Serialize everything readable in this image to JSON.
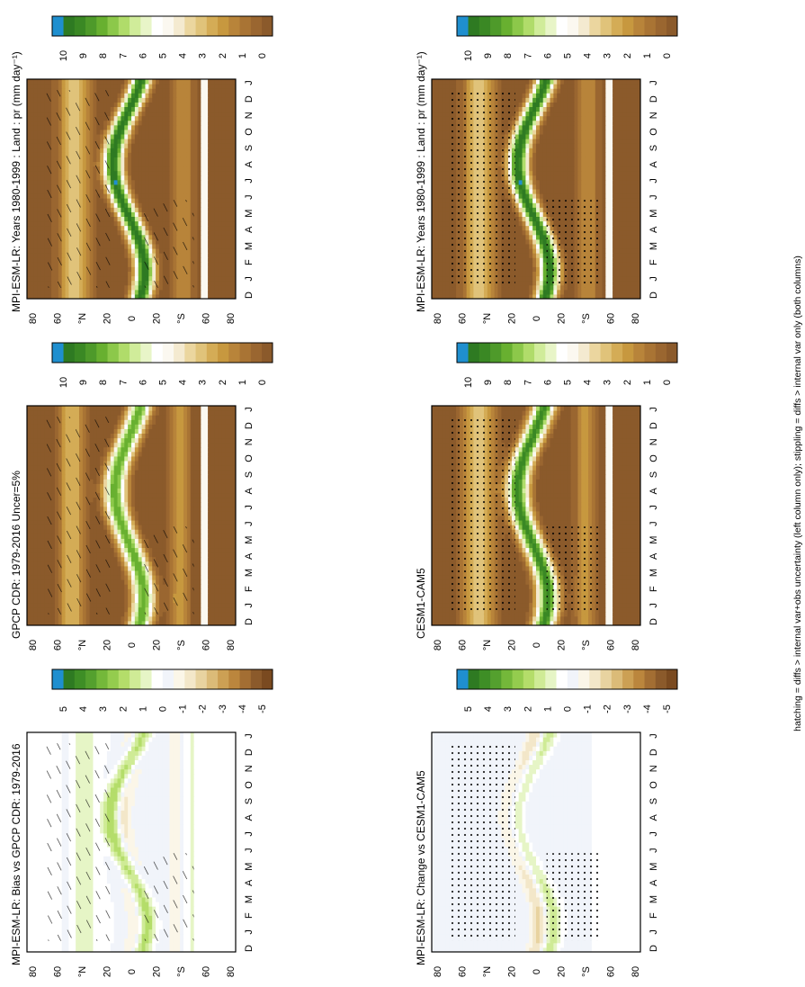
{
  "figure": {
    "footnote": "hatching = diffs > internal var+obs uncertainty (left column only); stippling = diffs > internal var only (both columns)"
  },
  "palettes": {
    "precip": [
      "#8b5a2b",
      "#9a6630",
      "#a97434",
      "#b8843a",
      "#c7983f",
      "#d4ac56",
      "#e0c37a",
      "#ebd69f",
      "#f4ead0",
      "#fbf8f0",
      "#ffffff",
      "#e8f5c8",
      "#d0ec9a",
      "#b0dc6a",
      "#8cc84a",
      "#68b030",
      "#4e9a2a",
      "#3a8824",
      "#2e7a22",
      "#1f8fcf"
    ],
    "diff": [
      "#7a4a20",
      "#8b5a2b",
      "#a36e33",
      "#bb863d",
      "#cca054",
      "#dbbb78",
      "#e8d3a0",
      "#f3e7c9",
      "#fbf6e8",
      "#f1f4fa",
      "#ffffff",
      "#e6f5c6",
      "#cfeb96",
      "#b4dd6a",
      "#94cc4e",
      "#74b83a",
      "#54a02e",
      "#3e8e26",
      "#2e7a22",
      "#1f8fcf"
    ],
    "hatch_color": "#000000",
    "stipple_color": "#000000"
  },
  "chart_data": [
    {
      "id": "model-left",
      "type": "heatmap",
      "title": "MPI-ESM-LR: Years 1980-1999 : Land : pr (mm day⁻¹)",
      "x_axis": {
        "label": "",
        "ticks": [
          "D",
          "J",
          "F",
          "M",
          "A",
          "M",
          "J",
          "J",
          "A",
          "S",
          "O",
          "N",
          "D",
          "J"
        ]
      },
      "y_axis": {
        "label": "",
        "ticks": [
          "80",
          "60",
          "°N",
          "20",
          "0",
          "20",
          "°S",
          "60",
          "80"
        ],
        "range": [
          -90,
          90
        ]
      },
      "colorbar": {
        "ticks": [
          "10",
          "9",
          "8",
          "7",
          "6",
          "5",
          "4",
          "3",
          "2",
          "1",
          "0"
        ],
        "range": [
          0,
          10
        ]
      },
      "palette": "precip",
      "field": "model",
      "overlay": "hatch"
    },
    {
      "id": "model-right",
      "type": "heatmap",
      "title": "MPI-ESM-LR: Years 1980-1999 : Land : pr (mm day⁻¹)",
      "x_axis": {
        "label": "",
        "ticks": [
          "D",
          "J",
          "F",
          "M",
          "A",
          "M",
          "J",
          "J",
          "A",
          "S",
          "O",
          "N",
          "D",
          "J"
        ]
      },
      "y_axis": {
        "label": "",
        "ticks": [
          "80",
          "60",
          "°N",
          "20",
          "0",
          "20",
          "°S",
          "60",
          "80"
        ],
        "range": [
          -90,
          90
        ]
      },
      "colorbar": {
        "ticks": [
          "10",
          "9",
          "8",
          "7",
          "6",
          "5",
          "4",
          "3",
          "2",
          "1",
          "0"
        ],
        "range": [
          0,
          10
        ]
      },
      "palette": "precip",
      "field": "model",
      "overlay": "stipple"
    },
    {
      "id": "obs",
      "type": "heatmap",
      "title": "GPCP CDR: 1979-2016 Uncer=5%",
      "x_axis": {
        "label": "",
        "ticks": [
          "D",
          "J",
          "F",
          "M",
          "A",
          "M",
          "J",
          "J",
          "A",
          "S",
          "O",
          "N",
          "D",
          "J"
        ]
      },
      "y_axis": {
        "label": "",
        "ticks": [
          "80",
          "60",
          "°N",
          "20",
          "0",
          "20",
          "°S",
          "60",
          "80"
        ],
        "range": [
          -90,
          90
        ]
      },
      "colorbar": {
        "ticks": [
          "10",
          "9",
          "8",
          "7",
          "6",
          "5",
          "4",
          "3",
          "2",
          "1",
          "0"
        ],
        "range": [
          0,
          10
        ]
      },
      "palette": "precip",
      "field": "obs",
      "overlay": "hatch"
    },
    {
      "id": "cesm",
      "type": "heatmap",
      "title": "CESM1-CAM5",
      "x_axis": {
        "label": "",
        "ticks": [
          "D",
          "J",
          "F",
          "M",
          "A",
          "M",
          "J",
          "J",
          "A",
          "S",
          "O",
          "N",
          "D",
          "J"
        ]
      },
      "y_axis": {
        "label": "",
        "ticks": [
          "80",
          "60",
          "°N",
          "20",
          "0",
          "20",
          "°S",
          "60",
          "80"
        ],
        "range": [
          -90,
          90
        ]
      },
      "colorbar": {
        "ticks": [
          "10",
          "9",
          "8",
          "7",
          "6",
          "5",
          "4",
          "3",
          "2",
          "1",
          "0"
        ],
        "range": [
          0,
          10
        ]
      },
      "palette": "precip",
      "field": "cesm",
      "overlay": "stipple"
    },
    {
      "id": "bias",
      "type": "heatmap",
      "title": "MPI-ESM-LR: Bias vs GPCP CDR: 1979-2016",
      "x_axis": {
        "label": "",
        "ticks": [
          "D",
          "J",
          "F",
          "M",
          "A",
          "M",
          "J",
          "J",
          "A",
          "S",
          "O",
          "N",
          "D",
          "J"
        ]
      },
      "y_axis": {
        "label": "",
        "ticks": [
          "80",
          "60",
          "°N",
          "20",
          "0",
          "20",
          "°S",
          "60",
          "80"
        ],
        "range": [
          -90,
          90
        ]
      },
      "colorbar": {
        "ticks": [
          "5",
          "4",
          "3",
          "2",
          "1",
          "0",
          "-1",
          "-2",
          "-3",
          "-4",
          "-5"
        ],
        "range": [
          -5,
          5
        ]
      },
      "palette": "diff",
      "field": "bias",
      "overlay": "hatch"
    },
    {
      "id": "change",
      "type": "heatmap",
      "title": "MPI-ESM-LR: Change vs CESM1-CAM5",
      "x_axis": {
        "label": "",
        "ticks": [
          "D",
          "J",
          "F",
          "M",
          "A",
          "M",
          "J",
          "J",
          "A",
          "S",
          "O",
          "N",
          "D",
          "J"
        ]
      },
      "y_axis": {
        "label": "",
        "ticks": [
          "80",
          "60",
          "°N",
          "20",
          "0",
          "20",
          "°S",
          "60",
          "80"
        ],
        "range": [
          -90,
          90
        ]
      },
      "colorbar": {
        "ticks": [
          "5",
          "4",
          "3",
          "2",
          "1",
          "0",
          "-1",
          "-2",
          "-3",
          "-4",
          "-5"
        ],
        "range": [
          -5,
          5
        ]
      },
      "palette": "diff",
      "field": "change",
      "overlay": "stipple"
    }
  ]
}
